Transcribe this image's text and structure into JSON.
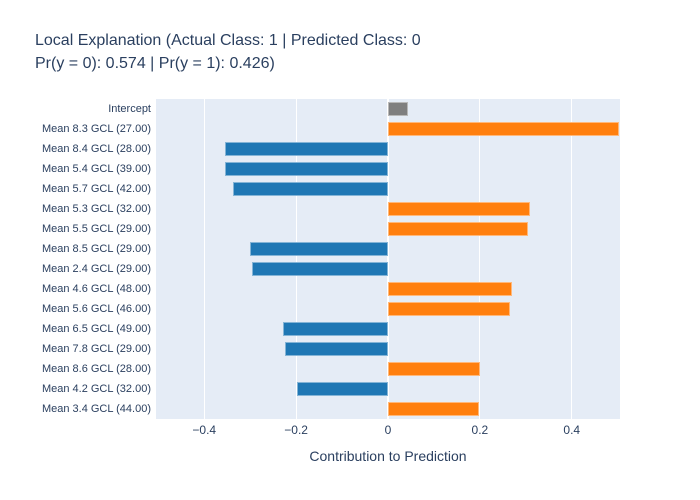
{
  "chart_data": {
    "type": "bar",
    "orientation": "horizontal",
    "title_lines": [
      "Local Explanation (Actual Class: 1 | Predicted Class: 0",
      "Pr(y = 0): 0.574 | Pr(y = 1): 0.426)"
    ],
    "xlabel": "Contribution to Prediction",
    "categories": [
      "Intercept",
      "Mean 8.3 GCL (27.00)",
      "Mean 8.4 GCL (28.00)",
      "Mean 5.4 GCL (39.00)",
      "Mean 5.7 GCL (42.00)",
      "Mean 5.3 GCL (32.00)",
      "Mean 5.5 GCL (29.00)",
      "Mean 8.5 GCL (29.00)",
      "Mean 2.4 GCL (29.00)",
      "Mean 4.6 GCL (48.00)",
      "Mean 5.6 GCL (46.00)",
      "Mean 6.5 GCL (49.00)",
      "Mean 7.8 GCL (29.00)",
      "Mean 8.6 GCL (28.00)",
      "Mean 4.2 GCL (32.00)",
      "Mean 3.4 GCL (44.00)"
    ],
    "values": [
      0.043,
      0.503,
      -0.355,
      -0.355,
      -0.338,
      0.31,
      0.305,
      -0.301,
      -0.296,
      0.27,
      0.266,
      -0.229,
      -0.225,
      0.2,
      -0.198,
      0.198
    ],
    "xlim": [
      -0.505,
      0.505
    ],
    "xticks": [
      -0.4,
      -0.2,
      0,
      0.2,
      0.4
    ],
    "xtick_labels": [
      "−0.4",
      "−0.2",
      "0",
      "0.2",
      "0.4"
    ],
    "grid": true,
    "legend": "none",
    "colors": {
      "positive_bar": "#ff7f0e",
      "negative_bar": "#1f77b4",
      "intercept_bar": "#7f7f7f",
      "plot_background": "#e5ecf6",
      "gridline": "#ffffff",
      "text": "#2a3f5f",
      "figure_background": "#ffffff"
    }
  }
}
